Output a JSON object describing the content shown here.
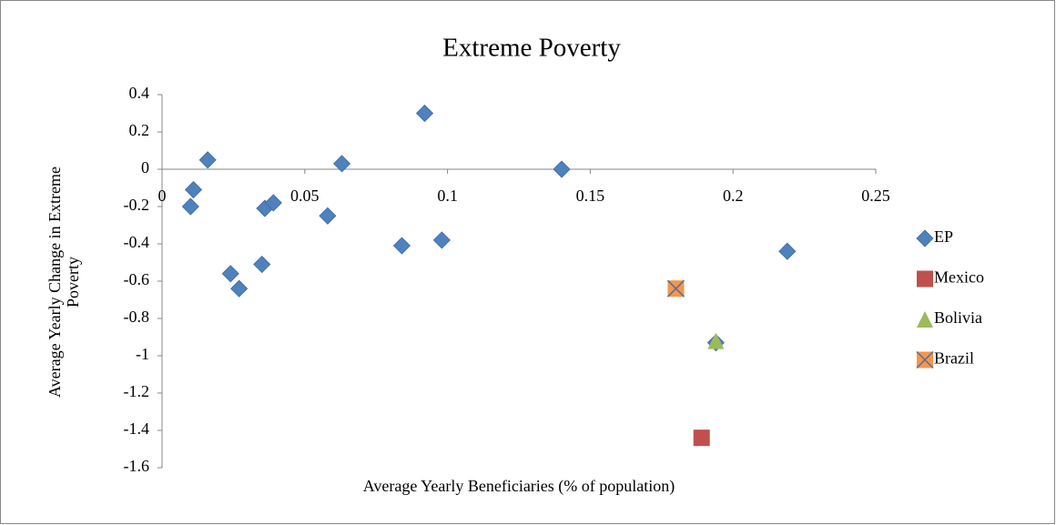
{
  "chart_data": {
    "type": "scatter",
    "title": "Extreme Poverty",
    "xlabel": "Average Yearly Beneficiaries (% of population)",
    "ylabel": [
      "Average Yearly Change in Extreme",
      "Poverty"
    ],
    "xlim": [
      0,
      0.25
    ],
    "xticks": [
      0,
      0.05,
      0.1,
      0.15,
      0.2,
      0.25
    ],
    "ylim": [
      -1.6,
      0.4
    ],
    "yticks": [
      0.4,
      0.2,
      0,
      -0.2,
      -0.4,
      -0.6,
      -0.8,
      -1,
      -1.2,
      -1.4,
      -1.6
    ],
    "grid": false,
    "legend": "right",
    "series": [
      {
        "name": "EP",
        "color": "#4f81bd",
        "marker": "diamond",
        "x": [
          0.016,
          0.011,
          0.01,
          0.024,
          0.027,
          0.035,
          0.036,
          0.039,
          0.058,
          0.063,
          0.084,
          0.092,
          0.098,
          0.14,
          0.219,
          0.194
        ],
        "values": [
          0.05,
          -0.11,
          -0.2,
          -0.56,
          -0.64,
          -0.51,
          -0.21,
          -0.18,
          -0.25,
          0.03,
          -0.41,
          0.3,
          -0.38,
          0,
          -0.44,
          -0.93
        ]
      },
      {
        "name": "Mexico",
        "color": "#c0504d",
        "marker": "square",
        "x": [
          0.189
        ],
        "values": [
          -1.44
        ]
      },
      {
        "name": "Bolivia",
        "color": "#9bbb59",
        "marker": "triangle",
        "x": [
          0.194
        ],
        "values": [
          -0.92
        ]
      },
      {
        "name": "Brazil",
        "color": "#f79646",
        "marker": "square-x",
        "x": [
          0.18
        ],
        "values": [
          -0.64
        ]
      }
    ]
  }
}
